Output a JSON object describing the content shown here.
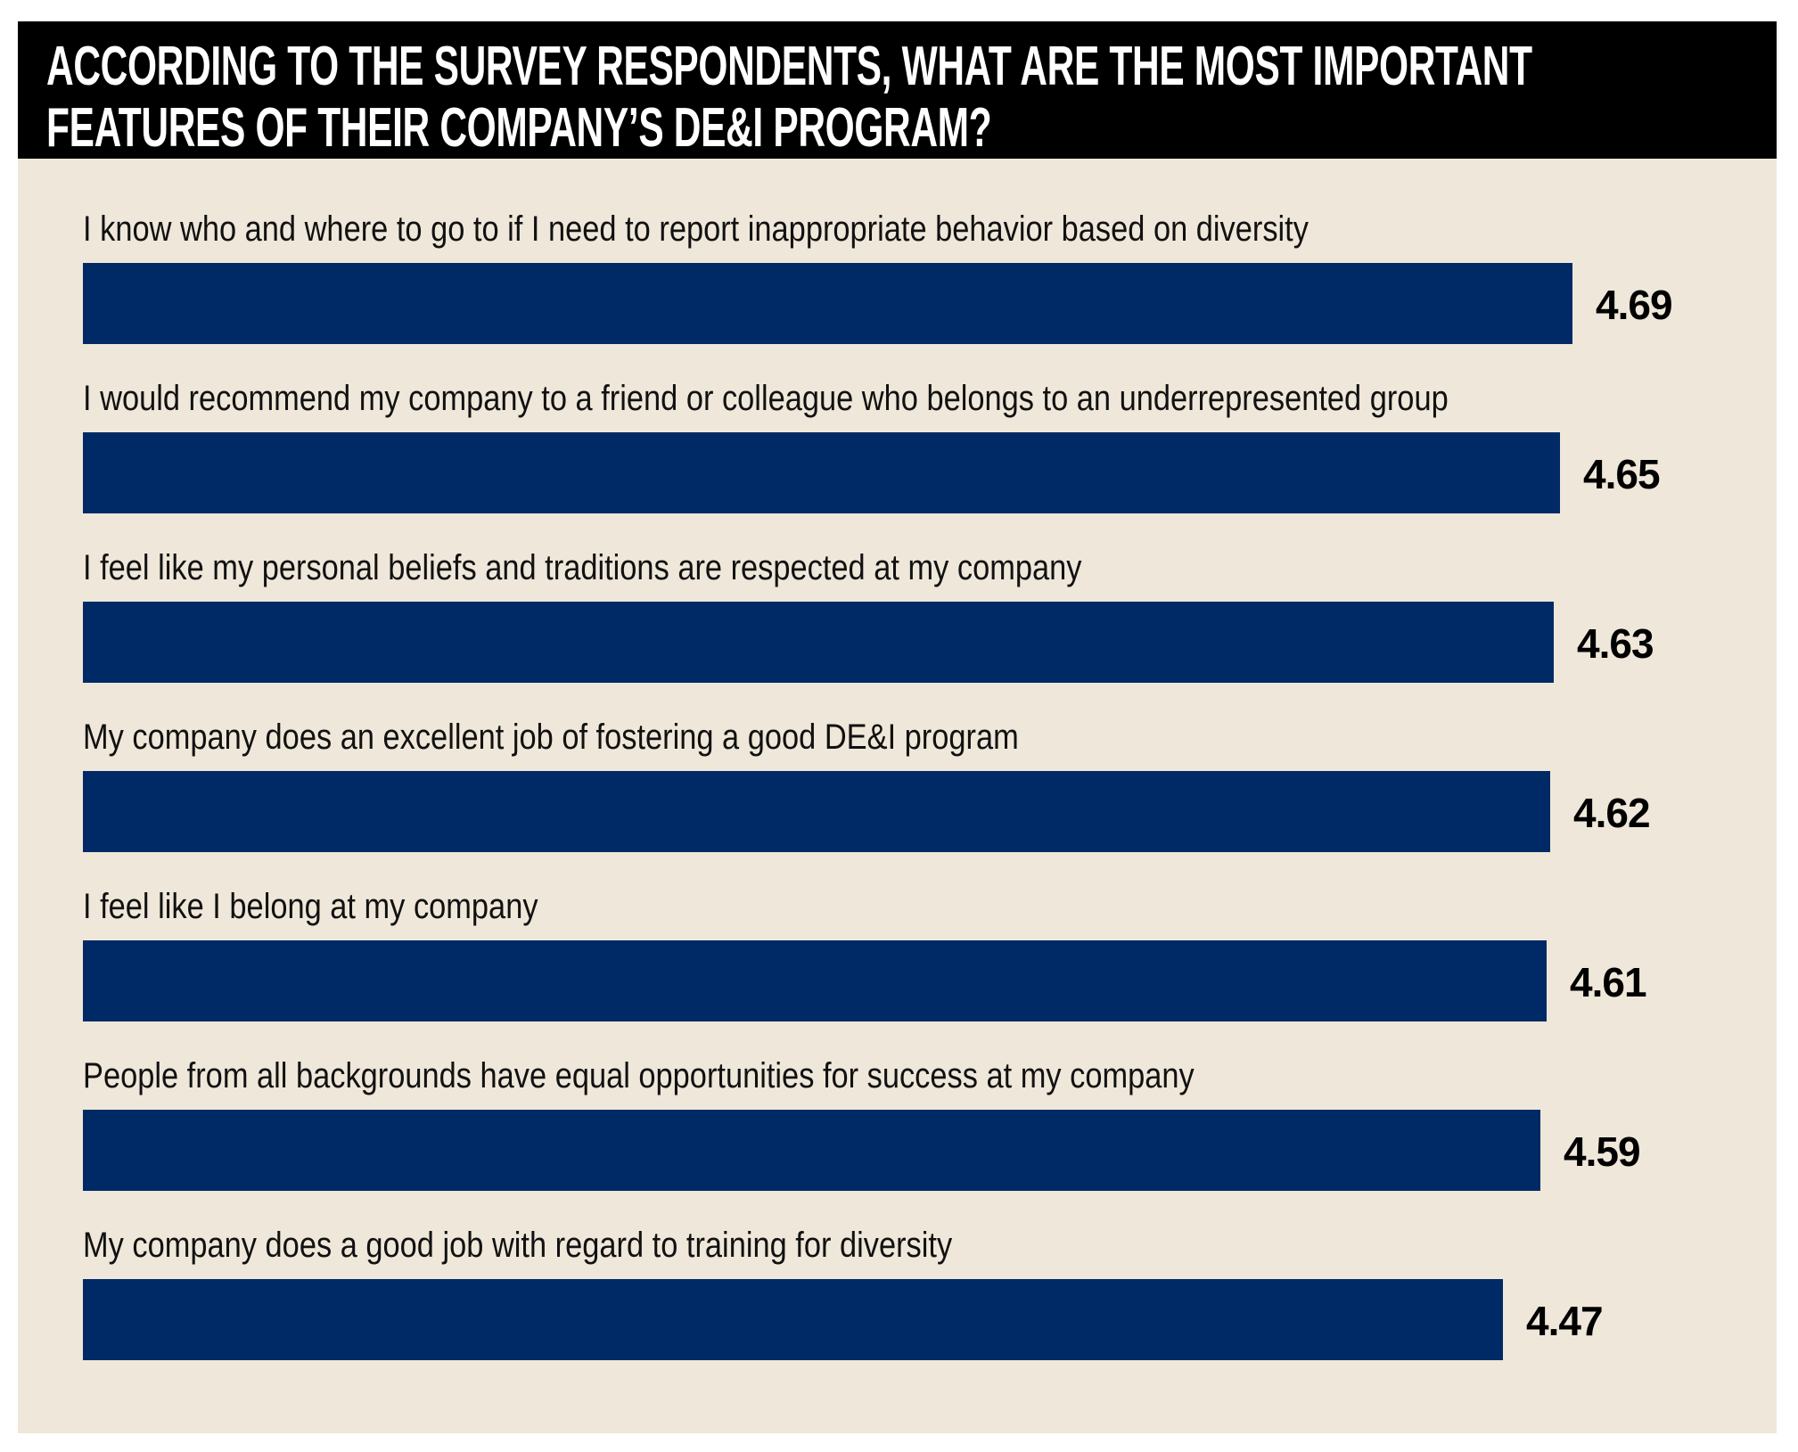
{
  "title": {
    "line1": "ACCORDING TO THE SURVEY RESPONDENTS, WHAT ARE THE MOST IMPORTANT",
    "line2": "FEATURES OF THEIR COMPANY’S DE&I PROGRAM?"
  },
  "colors": {
    "header_bg": "#000000",
    "panel_bg": "#efe7d9",
    "bar": "#002a66",
    "label_text": "#111111",
    "value_text": "#000000"
  },
  "chart_data": {
    "type": "bar",
    "orientation": "horizontal",
    "title": "ACCORDING TO THE SURVEY RESPONDENTS, WHAT ARE THE MOST IMPORTANT FEATURES OF THEIR COMPANY’S DE&I PROGRAM?",
    "xlabel": "",
    "ylabel": "",
    "xlim": [
      0,
      4.69
    ],
    "grid": false,
    "legend": "none",
    "categories": [
      "I know who and where to go to if I need to report inappropriate behavior based on diversity",
      "I would recommend my company to a friend or colleague who belongs to an underrepresented group",
      "I feel like my personal beliefs and traditions are respected at my company",
      "My company does an excellent job of fostering a good DE&I program",
      "I feel like I belong at my company",
      "People from all backgrounds have equal opportunities for success at my company",
      "My company does a good job with regard to training for diversity"
    ],
    "values": [
      4.69,
      4.65,
      4.63,
      4.62,
      4.61,
      4.59,
      4.47
    ],
    "value_labels": [
      "4.69",
      "4.65",
      "4.63",
      "4.62",
      "4.61",
      "4.59",
      "4.47"
    ]
  }
}
